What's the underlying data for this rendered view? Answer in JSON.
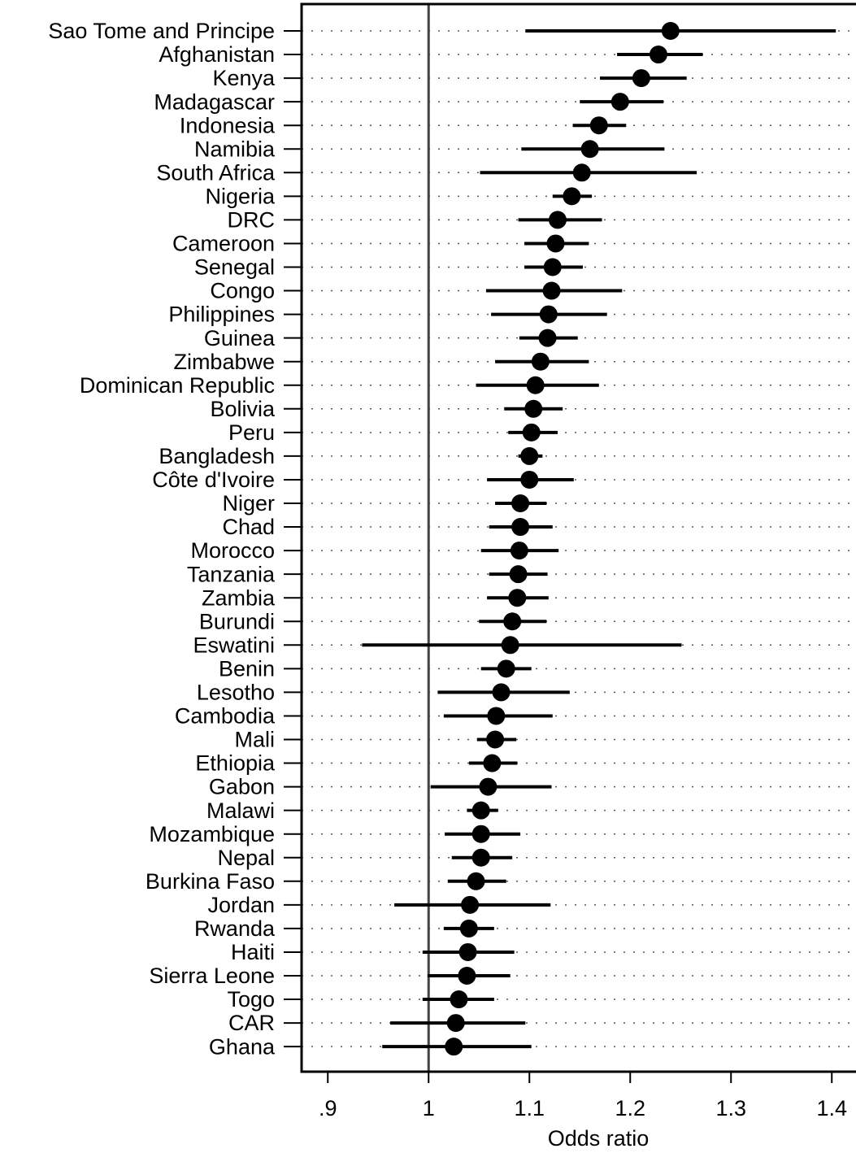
{
  "chart_data": {
    "type": "forest",
    "xlabel": "Odds ratio",
    "categories": [
      "Sao Tome and Principe",
      "Afghanistan",
      "Kenya",
      "Madagascar",
      "Indonesia",
      "Namibia",
      "South Africa",
      "Nigeria",
      "DRC",
      "Cameroon",
      "Senegal",
      "Congo",
      "Philippines",
      "Guinea",
      "Zimbabwe",
      "Dominican Republic",
      "Bolivia",
      "Peru",
      "Bangladesh",
      "Côte d'Ivoire",
      "Niger",
      "Chad",
      "Morocco",
      "Tanzania",
      "Zambia",
      "Burundi",
      "Eswatini",
      "Benin",
      "Lesotho",
      "Cambodia",
      "Mali",
      "Ethiopia",
      "Gabon",
      "Malawi",
      "Mozambique",
      "Nepal",
      "Burkina Faso",
      "Jordan",
      "Rwanda",
      "Haiti",
      "Sierra Leone",
      "Togo",
      "CAR",
      "Ghana"
    ],
    "values": [
      1.24,
      1.228,
      1.211,
      1.19,
      1.169,
      1.16,
      1.152,
      1.142,
      1.128,
      1.126,
      1.123,
      1.122,
      1.119,
      1.118,
      1.111,
      1.106,
      1.104,
      1.102,
      1.1,
      1.1,
      1.091,
      1.091,
      1.09,
      1.089,
      1.088,
      1.083,
      1.081,
      1.077,
      1.072,
      1.067,
      1.066,
      1.063,
      1.059,
      1.052,
      1.052,
      1.052,
      1.047,
      1.041,
      1.04,
      1.039,
      1.038,
      1.03,
      1.027,
      1.025
    ],
    "lower": [
      1.096,
      1.187,
      1.17,
      1.15,
      1.143,
      1.092,
      1.051,
      1.123,
      1.089,
      1.095,
      1.095,
      1.057,
      1.062,
      1.09,
      1.066,
      1.047,
      1.075,
      1.079,
      1.089,
      1.058,
      1.066,
      1.06,
      1.052,
      1.06,
      1.058,
      1.05,
      0.934,
      1.052,
      1.009,
      1.015,
      1.048,
      1.04,
      1.002,
      1.038,
      1.016,
      1.023,
      1.019,
      0.966,
      1.015,
      0.994,
      0.999,
      0.994,
      0.962,
      0.954
    ],
    "upper": [
      1.404,
      1.272,
      1.256,
      1.233,
      1.196,
      1.234,
      1.266,
      1.162,
      1.172,
      1.159,
      1.153,
      1.192,
      1.177,
      1.148,
      1.159,
      1.169,
      1.133,
      1.128,
      1.113,
      1.144,
      1.117,
      1.123,
      1.129,
      1.118,
      1.119,
      1.117,
      1.251,
      1.102,
      1.14,
      1.123,
      1.087,
      1.088,
      1.122,
      1.069,
      1.091,
      1.083,
      1.077,
      1.121,
      1.065,
      1.085,
      1.081,
      1.065,
      1.096,
      1.102
    ],
    "color": "#000000",
    "xlim": [
      0.874,
      1.424
    ],
    "xticks": [
      {
        "value": 0.9,
        "label": ".9"
      },
      1,
      1.1,
      1.2,
      1.3,
      1.4
    ],
    "refline": 1,
    "row_grid": true
  }
}
